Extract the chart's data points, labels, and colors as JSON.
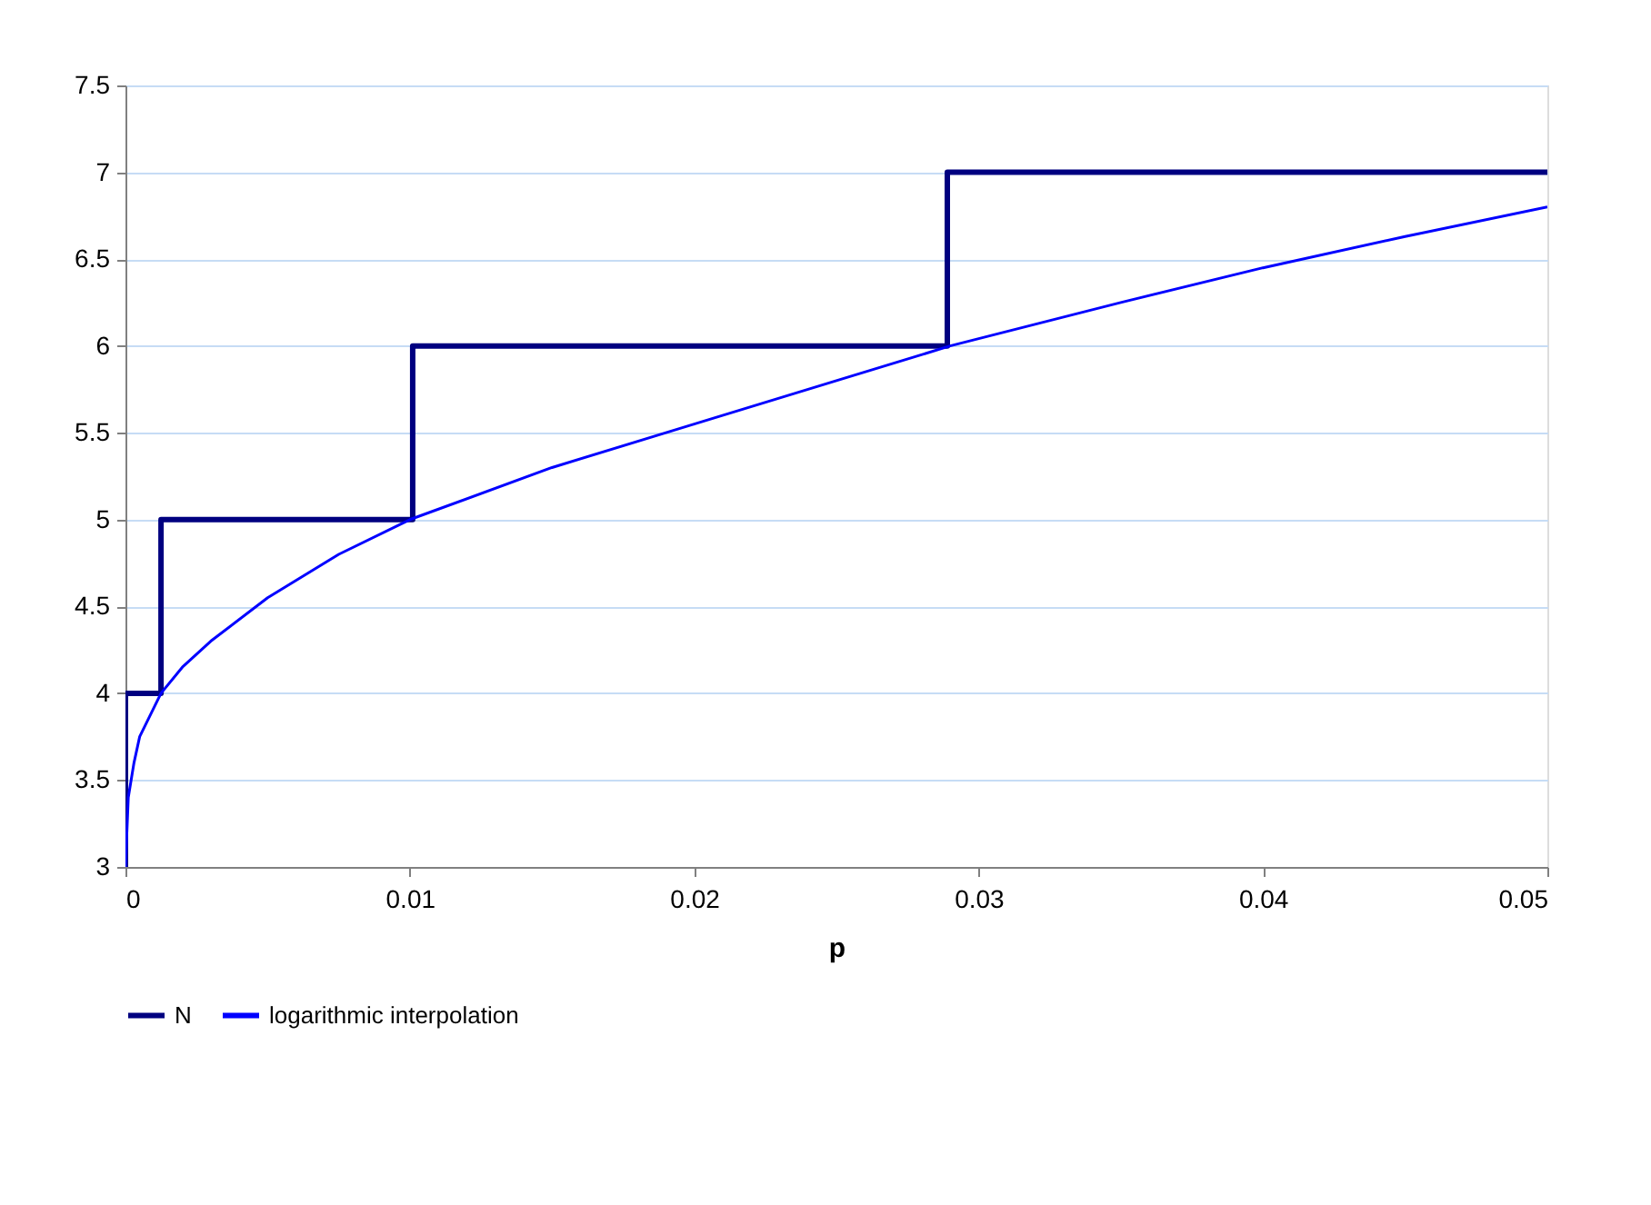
{
  "chart_data": {
    "type": "line",
    "xlabel": "p",
    "xlim": [
      0,
      0.05
    ],
    "xticks": [
      0,
      0.01,
      0.02,
      0.03,
      0.04,
      0.05
    ],
    "ylim": [
      3,
      7.5
    ],
    "yticks": [
      3,
      3.5,
      4,
      4.5,
      5,
      5.5,
      6,
      6.5,
      7,
      7.5
    ],
    "grid": "y",
    "legend": "bottom",
    "marker": "none",
    "series": [
      {
        "name": "N",
        "type": "step",
        "color": "#000080",
        "x": [
          0,
          0,
          0.00125,
          0.0101,
          0.0289,
          0.05
        ],
        "values": [
          3,
          4,
          5,
          6,
          7,
          7
        ]
      },
      {
        "name": "logarithmic interpolation",
        "color": "#0000ff",
        "x": [
          0,
          0.0001,
          0.0003,
          0.0005,
          0.00125,
          0.002,
          0.003,
          0.005,
          0.0075,
          0.01,
          0.015,
          0.02,
          0.025,
          0.029,
          0.035,
          0.04,
          0.045,
          0.05
        ],
        "values": [
          3,
          3.4,
          3.6,
          3.75,
          4.0,
          4.15,
          4.3,
          4.55,
          4.8,
          5.0,
          5.3,
          5.55,
          5.8,
          6.0,
          6.25,
          6.45,
          6.63,
          6.8
        ]
      }
    ]
  }
}
